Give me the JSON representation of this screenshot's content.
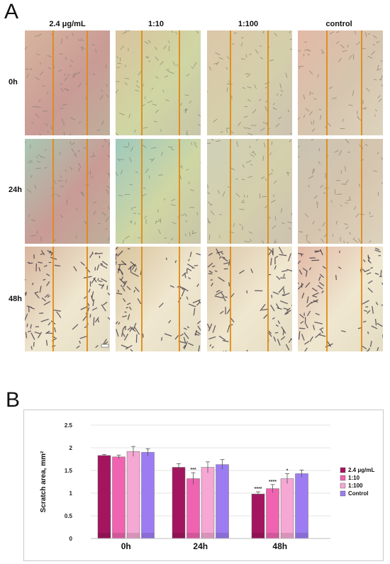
{
  "figure": {
    "panel_a_letter": "A",
    "panel_b_letter": "B",
    "columns": [
      "2.4 μg/mL",
      "1:10",
      "1:100",
      "control"
    ],
    "rows": [
      "0h",
      "24h",
      "48h"
    ]
  },
  "chart_data": {
    "type": "bar",
    "categories": [
      "0h",
      "24h",
      "48h"
    ],
    "ylabel": "Scratch area, mm²",
    "ylim": [
      0,
      2.5
    ],
    "yticks": [
      "0",
      "0.5",
      "1",
      "1.5",
      "2",
      "2.5"
    ],
    "grid": true,
    "legend_position": "right",
    "series": [
      {
        "name": "2.4 μg/mL",
        "color": "#a3165f",
        "values": [
          1.83,
          1.57,
          0.98
        ],
        "errors": [
          0.02,
          0.08,
          0.05
        ],
        "sig": [
          "",
          "",
          "****"
        ]
      },
      {
        "name": "1:10",
        "color": "#ef63b0",
        "values": [
          1.8,
          1.32,
          1.1
        ],
        "errors": [
          0.04,
          0.13,
          0.09
        ],
        "sig": [
          "",
          "***",
          "****"
        ]
      },
      {
        "name": "1:100",
        "color": "#f5a8d4",
        "values": [
          1.92,
          1.57,
          1.32
        ],
        "errors": [
          0.11,
          0.12,
          0.11
        ],
        "sig": [
          "",
          "",
          "*"
        ]
      },
      {
        "name": "Control",
        "color": "#9d7cf2",
        "values": [
          1.9,
          1.63,
          1.43
        ],
        "errors": [
          0.08,
          0.11,
          0.08
        ],
        "sig": [
          "",
          "",
          ""
        ]
      }
    ]
  }
}
